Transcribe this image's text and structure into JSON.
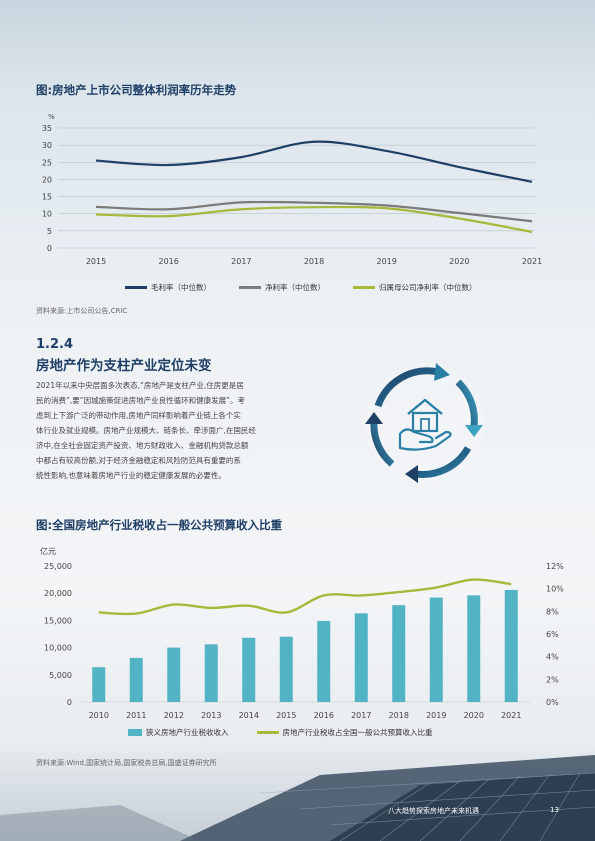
{
  "chart1": {
    "title": "图:房地产上市公司整体利润率历年走势",
    "source": "资料来源:上市公司公告,CRIC",
    "chart_data": {
      "type": "line",
      "ylabel": "%",
      "ylim": [
        0,
        35
      ],
      "yticks": [
        "0",
        "5",
        "10",
        "15",
        "20",
        "25",
        "30",
        "35"
      ],
      "x": [
        "2015",
        "2016",
        "2017",
        "2018",
        "2019",
        "2020",
        "2021"
      ],
      "series": [
        {
          "name": "毛利率（中位数）",
          "color": "#1e3f66",
          "values": [
            25.5,
            24.2,
            26.5,
            31.0,
            28.3,
            23.6,
            19.3
          ]
        },
        {
          "name": "净利率（中位数）",
          "color": "#7b7b7b",
          "values": [
            12.0,
            11.3,
            13.3,
            13.2,
            12.4,
            10.2,
            7.8
          ]
        },
        {
          "name": "归属母公司净利率（中位数）",
          "color": "#a6b93a",
          "values": [
            9.8,
            9.3,
            11.3,
            11.9,
            11.6,
            8.6,
            4.7
          ]
        }
      ],
      "grid": true,
      "legend": "bottom"
    }
  },
  "section": {
    "number": "1.2.4",
    "title": "房地产作为支柱产业定位未变",
    "lines": [
      "2021年以来中央层面多次表态,“房地产是支柱产业,住房更是居",
      "民的消费”,要“因城施策促进房地产业良性循环和健康发展”。考",
      "虑到上下游广泛的带动作用,房地产同样影响着产业链上各个实",
      "体行业及就业规模。房地产业规模大、链条长、牵涉面广,在国民经",
      "济中,在全社会固定资产投资、地方财政收入、金融机构贷款总额",
      "中都占有较高份额,对于经济金融稳定和风险防范具有重要的系",
      "统性影响,也意味着房地产行业的稳定健康发展的必要性。"
    ]
  },
  "chart2": {
    "title": "图:全国房地产行业税收占一般公共预算收入比重",
    "source": "资料来源:Wind,国家统计局,国家税务总局,国盛证券研究所",
    "chart_data": {
      "type": "bar",
      "ylabel": "亿元",
      "ylim": [
        0,
        25000
      ],
      "yticks": [
        "0",
        "5,000",
        "10,000",
        "15,000",
        "20,000",
        "25,000"
      ],
      "y2lim": [
        0,
        12
      ],
      "y2ticks": [
        "0%",
        "2%",
        "4%",
        "6%",
        "8%",
        "10%",
        "12%"
      ],
      "categories": [
        "2010",
        "2011",
        "2012",
        "2013",
        "2014",
        "2015",
        "2016",
        "2017",
        "2018",
        "2019",
        "2020",
        "2021"
      ],
      "series": [
        {
          "name": "狭义房地产行业税收收入",
          "type": "bar",
          "axis": "left",
          "color": "#52b3c4",
          "values": [
            6400,
            8100,
            10000,
            10600,
            11800,
            12000,
            14900,
            16300,
            17800,
            19200,
            19600,
            20600
          ]
        },
        {
          "name": "房地产行业税收占全国一般公共预算收入比重",
          "type": "line",
          "axis": "right",
          "color": "#a6b93a",
          "values": [
            7.9,
            7.8,
            8.6,
            8.3,
            8.5,
            7.9,
            9.4,
            9.4,
            9.7,
            10.1,
            10.8,
            10.4
          ]
        }
      ],
      "grid": false,
      "legend": "bottom"
    }
  },
  "footer": {
    "text": "八大趋势探索房地产未来机遇",
    "page": "13"
  }
}
